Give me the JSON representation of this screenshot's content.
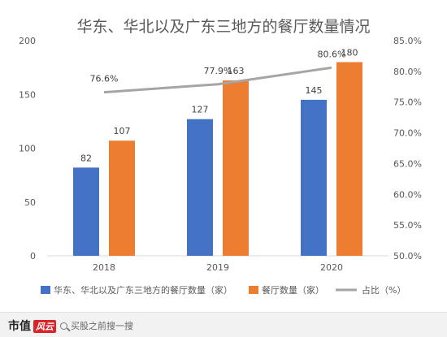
{
  "footer": {
    "brand": "市值",
    "brand_badge": "风云",
    "search_hint": "买股之前搜一搜"
  },
  "chart_data": {
    "type": "bar",
    "title": "华东、华北以及广东三地方的餐厅数量情况",
    "categories": [
      "2018",
      "2019",
      "2020"
    ],
    "series": [
      {
        "name": "华东、华北以及广东三地方的餐厅数量（家）",
        "type": "bar",
        "axis": "left",
        "color": "#4472c4",
        "values": [
          82,
          127,
          145
        ]
      },
      {
        "name": "餐厅数量（家）",
        "type": "bar",
        "axis": "left",
        "color": "#ed7d31",
        "values": [
          107,
          163,
          180
        ]
      },
      {
        "name": "占比（%）",
        "type": "line",
        "axis": "right",
        "color": "#a5a5a5",
        "values": [
          76.6,
          77.9,
          80.6
        ],
        "labels": [
          "76.6%",
          "77.9%",
          "80.6%"
        ]
      }
    ],
    "y_left": {
      "min": 0,
      "max": 200,
      "ticks": [
        0,
        50,
        100,
        150,
        200
      ]
    },
    "y_right": {
      "min": 50,
      "max": 85,
      "ticks": [
        "50.0%",
        "55.0%",
        "60.0%",
        "65.0%",
        "70.0%",
        "75.0%",
        "80.0%",
        "85.0%"
      ]
    },
    "legend_position": "bottom",
    "grid": false
  }
}
